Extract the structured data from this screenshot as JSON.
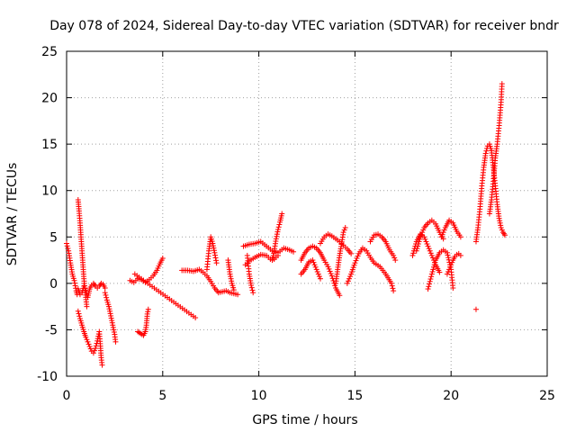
{
  "chart_data": {
    "type": "scatter",
    "title": "Day 078 of 2024, Sidereal Day-to-day VTEC variation (SDTVAR) for receiver bndr",
    "xlabel": "GPS time / hours",
    "ylabel": "SDTVAR / TECUs",
    "xlim": [
      0,
      25
    ],
    "ylim": [
      -10,
      25
    ],
    "xticks": [
      0,
      5,
      10,
      15,
      20,
      25
    ],
    "yticks": [
      -10,
      -5,
      0,
      5,
      10,
      15,
      20,
      25
    ],
    "grid": true,
    "marker": "+",
    "color": "#ff0000",
    "series": [
      {
        "name": "seg01",
        "points": [
          [
            0.0,
            4.3
          ],
          [
            0.1,
            3.5
          ],
          [
            0.2,
            2.2
          ],
          [
            0.3,
            1.0
          ],
          [
            0.4,
            0.3
          ],
          [
            0.5,
            -0.8
          ],
          [
            0.55,
            -1.2
          ]
        ]
      },
      {
        "name": "seg02",
        "points": [
          [
            0.6,
            9.0
          ],
          [
            0.65,
            7.8
          ],
          [
            0.7,
            6.5
          ],
          [
            0.75,
            5.0
          ],
          [
            0.8,
            3.5
          ],
          [
            0.85,
            2.0
          ],
          [
            0.9,
            0.5
          ],
          [
            0.95,
            -0.5
          ],
          [
            1.0,
            -1.5
          ],
          [
            1.05,
            -2.5
          ]
        ]
      },
      {
        "name": "seg03",
        "points": [
          [
            0.6,
            -3.0
          ],
          [
            0.7,
            -3.8
          ],
          [
            0.8,
            -4.5
          ],
          [
            0.9,
            -5.2
          ],
          [
            1.0,
            -5.8
          ],
          [
            1.1,
            -6.3
          ],
          [
            1.2,
            -6.8
          ],
          [
            1.3,
            -7.3
          ],
          [
            1.4,
            -7.5
          ],
          [
            1.5,
            -7.0
          ],
          [
            1.6,
            -6.2
          ],
          [
            1.7,
            -5.2
          ],
          [
            1.75,
            -6.5
          ],
          [
            1.8,
            -8.0
          ],
          [
            1.85,
            -8.8
          ]
        ]
      },
      {
        "name": "seg04",
        "points": [
          [
            0.6,
            -0.6
          ],
          [
            0.7,
            -1.2
          ],
          [
            0.8,
            -1.0
          ],
          [
            0.9,
            -0.3
          ],
          [
            1.0,
            -0.8
          ],
          [
            1.1,
            -1.5
          ],
          [
            1.2,
            -0.6
          ],
          [
            1.3,
            -0.2
          ],
          [
            1.4,
            0.0
          ],
          [
            1.5,
            -0.3
          ],
          [
            1.6,
            -0.5
          ],
          [
            1.7,
            -0.3
          ],
          [
            1.8,
            0.0
          ],
          [
            1.9,
            -0.1
          ],
          [
            2.0,
            -0.5
          ]
        ]
      },
      {
        "name": "seg05",
        "points": [
          [
            2.0,
            -1.0
          ],
          [
            2.1,
            -1.8
          ],
          [
            2.2,
            -2.5
          ],
          [
            2.3,
            -3.5
          ],
          [
            2.4,
            -4.5
          ],
          [
            2.5,
            -5.5
          ],
          [
            2.55,
            -6.3
          ]
        ]
      },
      {
        "name": "seg06",
        "points": [
          [
            3.3,
            0.3
          ],
          [
            3.5,
            0.1
          ],
          [
            3.7,
            0.5
          ],
          [
            3.9,
            0.4
          ],
          [
            4.1,
            0.1
          ],
          [
            4.3,
            0.4
          ],
          [
            4.5,
            0.8
          ],
          [
            4.7,
            1.4
          ],
          [
            4.85,
            2.1
          ],
          [
            5.0,
            2.7
          ]
        ]
      },
      {
        "name": "seg07",
        "points": [
          [
            3.7,
            -5.2
          ],
          [
            3.85,
            -5.4
          ],
          [
            4.0,
            -5.6
          ],
          [
            4.1,
            -5.2
          ],
          [
            4.15,
            -4.5
          ],
          [
            4.2,
            -3.3
          ],
          [
            4.25,
            -2.8
          ]
        ]
      },
      {
        "name": "seg08",
        "points": [
          [
            3.55,
            1.0
          ],
          [
            6.7,
            -3.7
          ]
        ]
      },
      {
        "name": "seg09",
        "points": [
          [
            6.0,
            1.4
          ],
          [
            6.3,
            1.4
          ],
          [
            6.6,
            1.3
          ],
          [
            6.9,
            1.5
          ],
          [
            7.1,
            1.2
          ],
          [
            7.3,
            0.8
          ],
          [
            7.5,
            0.2
          ],
          [
            7.7,
            -0.5
          ],
          [
            7.9,
            -1.0
          ],
          [
            8.1,
            -0.9
          ],
          [
            8.3,
            -0.8
          ],
          [
            8.5,
            -1.0
          ],
          [
            8.7,
            -1.1
          ],
          [
            8.9,
            -1.2
          ]
        ]
      },
      {
        "name": "seg10",
        "points": [
          [
            7.3,
            1.5
          ],
          [
            7.4,
            3.5
          ],
          [
            7.5,
            5.0
          ],
          [
            7.6,
            4.3
          ],
          [
            7.7,
            3.3
          ],
          [
            7.8,
            2.2
          ]
        ]
      },
      {
        "name": "seg11",
        "points": [
          [
            8.4,
            2.5
          ],
          [
            8.5,
            1.0
          ],
          [
            8.6,
            0.0
          ],
          [
            8.7,
            -0.7
          ]
        ]
      },
      {
        "name": "seg12",
        "points": [
          [
            9.3,
            2.0
          ],
          [
            9.5,
            2.4
          ],
          [
            9.8,
            2.8
          ],
          [
            10.1,
            3.1
          ],
          [
            10.4,
            3.0
          ],
          [
            10.6,
            2.6
          ],
          [
            10.8,
            2.6
          ],
          [
            11.0,
            3.0
          ]
        ]
      },
      {
        "name": "seg13",
        "points": [
          [
            9.4,
            3.0
          ],
          [
            9.5,
            1.0
          ],
          [
            9.6,
            -0.2
          ],
          [
            9.7,
            -1.0
          ]
        ]
      },
      {
        "name": "seg14",
        "points": [
          [
            9.2,
            4.0
          ],
          [
            9.5,
            4.2
          ],
          [
            9.8,
            4.3
          ],
          [
            10.1,
            4.5
          ],
          [
            10.4,
            4.0
          ],
          [
            10.7,
            3.5
          ],
          [
            11.0,
            3.3
          ],
          [
            11.3,
            3.8
          ],
          [
            11.6,
            3.6
          ],
          [
            11.8,
            3.4
          ]
        ]
      },
      {
        "name": "seg15",
        "points": [
          [
            10.7,
            2.5
          ],
          [
            10.8,
            3.5
          ],
          [
            10.9,
            4.8
          ],
          [
            11.0,
            5.8
          ],
          [
            11.1,
            6.6
          ],
          [
            11.2,
            7.5
          ]
        ]
      },
      {
        "name": "seg16",
        "points": [
          [
            12.2,
            2.5
          ],
          [
            12.4,
            3.3
          ],
          [
            12.6,
            3.8
          ],
          [
            12.8,
            4.0
          ],
          [
            13.0,
            3.8
          ],
          [
            13.2,
            3.3
          ],
          [
            13.4,
            2.5
          ],
          [
            13.6,
            1.8
          ],
          [
            13.8,
            0.8
          ],
          [
            14.0,
            -0.5
          ],
          [
            14.2,
            -1.3
          ]
        ]
      },
      {
        "name": "seg17",
        "points": [
          [
            12.2,
            1.0
          ],
          [
            12.4,
            1.5
          ],
          [
            12.6,
            2.3
          ],
          [
            12.8,
            2.5
          ],
          [
            13.0,
            1.5
          ],
          [
            13.2,
            0.5
          ]
        ]
      },
      {
        "name": "seg18",
        "points": [
          [
            13.2,
            4.3
          ],
          [
            13.4,
            5.0
          ],
          [
            13.6,
            5.3
          ],
          [
            13.8,
            5.1
          ],
          [
            14.0,
            4.8
          ],
          [
            14.2,
            4.5
          ],
          [
            14.4,
            4.1
          ],
          [
            14.6,
            3.7
          ],
          [
            14.8,
            3.2
          ]
        ]
      },
      {
        "name": "seg19",
        "points": [
          [
            14.0,
            0.0
          ],
          [
            14.1,
            1.5
          ],
          [
            14.2,
            3.0
          ],
          [
            14.3,
            4.2
          ],
          [
            14.4,
            5.5
          ],
          [
            14.5,
            6.0
          ]
        ]
      },
      {
        "name": "seg20",
        "points": [
          [
            14.6,
            0.0
          ],
          [
            14.8,
            1.0
          ],
          [
            15.0,
            2.2
          ],
          [
            15.2,
            3.2
          ],
          [
            15.4,
            3.8
          ],
          [
            15.6,
            3.5
          ],
          [
            15.8,
            2.8
          ],
          [
            16.0,
            2.2
          ],
          [
            16.3,
            1.8
          ],
          [
            16.6,
            1.0
          ],
          [
            16.9,
            0.0
          ],
          [
            17.0,
            -0.8
          ]
        ]
      },
      {
        "name": "seg21",
        "points": [
          [
            15.8,
            4.5
          ],
          [
            16.0,
            5.2
          ],
          [
            16.2,
            5.3
          ],
          [
            16.4,
            5.0
          ],
          [
            16.6,
            4.5
          ],
          [
            16.8,
            3.6
          ],
          [
            17.0,
            3.0
          ],
          [
            17.1,
            2.5
          ]
        ]
      },
      {
        "name": "seg22",
        "points": [
          [
            18.0,
            3.0
          ],
          [
            18.2,
            4.5
          ],
          [
            18.4,
            5.3
          ],
          [
            18.6,
            5.0
          ],
          [
            18.8,
            4.0
          ],
          [
            19.0,
            3.0
          ],
          [
            19.2,
            2.0
          ],
          [
            19.4,
            1.2
          ]
        ]
      },
      {
        "name": "seg23",
        "points": [
          [
            18.2,
            3.5
          ],
          [
            18.4,
            5.0
          ],
          [
            18.6,
            6.0
          ],
          [
            18.8,
            6.5
          ],
          [
            19.0,
            6.8
          ],
          [
            19.2,
            6.4
          ],
          [
            19.4,
            5.5
          ],
          [
            19.6,
            4.8
          ]
        ]
      },
      {
        "name": "seg24",
        "points": [
          [
            18.8,
            -0.6
          ],
          [
            19.0,
            1.0
          ],
          [
            19.2,
            2.5
          ],
          [
            19.4,
            3.3
          ],
          [
            19.6,
            3.6
          ],
          [
            19.8,
            3.3
          ],
          [
            20.0,
            1.5
          ],
          [
            20.1,
            -0.5
          ]
        ]
      },
      {
        "name": "seg25",
        "points": [
          [
            19.5,
            5.0
          ],
          [
            19.7,
            6.0
          ],
          [
            19.9,
            6.8
          ],
          [
            20.1,
            6.5
          ],
          [
            20.3,
            5.6
          ],
          [
            20.5,
            5.0
          ]
        ]
      },
      {
        "name": "seg26",
        "points": [
          [
            19.8,
            1.0
          ],
          [
            19.9,
            1.5
          ],
          [
            20.0,
            2.0
          ],
          [
            20.1,
            2.5
          ],
          [
            20.2,
            2.9
          ],
          [
            20.3,
            3.1
          ],
          [
            20.4,
            3.2
          ],
          [
            20.5,
            3.0
          ]
        ]
      },
      {
        "name": "seg27",
        "points": [
          [
            21.3,
            4.5
          ],
          [
            21.4,
            6.0
          ],
          [
            21.5,
            8.0
          ],
          [
            21.6,
            10.5
          ],
          [
            21.7,
            12.5
          ],
          [
            21.8,
            14.0
          ],
          [
            21.9,
            14.8
          ],
          [
            22.0,
            15.0
          ],
          [
            22.1,
            14.3
          ],
          [
            22.2,
            12.5
          ],
          [
            22.3,
            10.5
          ],
          [
            22.4,
            8.5
          ],
          [
            22.5,
            7.0
          ],
          [
            22.6,
            6.0
          ],
          [
            22.7,
            5.5
          ],
          [
            22.8,
            5.2
          ]
        ]
      },
      {
        "name": "seg28",
        "points": [
          [
            22.0,
            7.5
          ],
          [
            22.1,
            9.0
          ],
          [
            22.2,
            11.0
          ],
          [
            22.3,
            13.5
          ],
          [
            22.4,
            15.0
          ],
          [
            22.5,
            17.0
          ],
          [
            22.6,
            19.5
          ],
          [
            22.65,
            21.5
          ]
        ]
      },
      {
        "name": "seg29",
        "points": [
          [
            21.3,
            -2.8
          ]
        ]
      }
    ]
  }
}
